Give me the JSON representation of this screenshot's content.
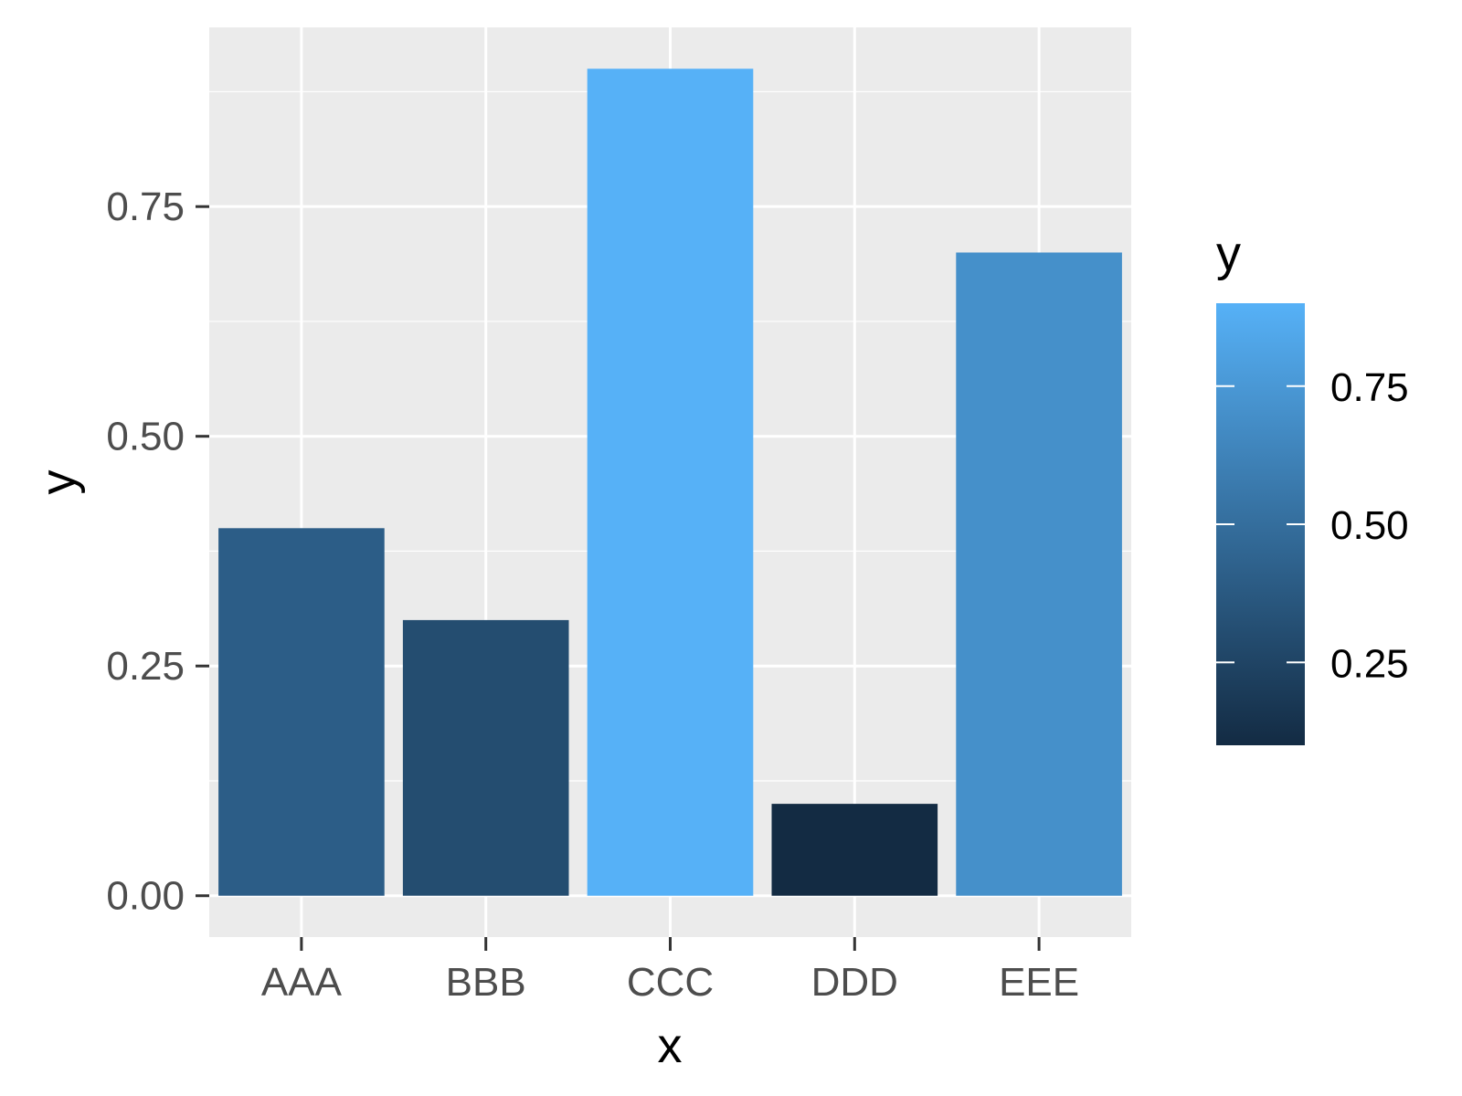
{
  "chart_data": {
    "type": "bar",
    "categories": [
      "AAA",
      "BBB",
      "CCC",
      "DDD",
      "EEE"
    ],
    "values": [
      0.4,
      0.3,
      0.9,
      0.1,
      0.7
    ],
    "xlabel": "x",
    "ylabel": "y",
    "ylim": [
      -0.045,
      0.945
    ],
    "yticks": [
      0,
      0.25,
      0.5,
      0.75
    ],
    "ytick_labels": [
      "0.00",
      "0.25",
      "0.50",
      "0.75"
    ],
    "grid": true,
    "legend": {
      "title": "y",
      "placement": "right",
      "type": "colorbar",
      "range": [
        0.1,
        0.9
      ],
      "ticks": [
        0.25,
        0.5,
        0.75
      ],
      "tick_labels": [
        "0.25",
        "0.50",
        "0.75"
      ]
    },
    "colors": {
      "low": "#132B43",
      "high": "#56B1F7",
      "panel_background": "#EBEBEB",
      "grid": "#FFFFFF"
    }
  }
}
